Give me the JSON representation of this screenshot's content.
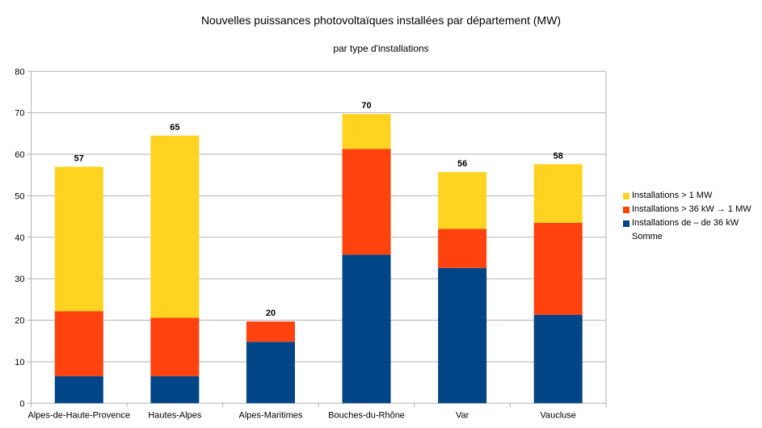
{
  "chart_data": {
    "type": "bar",
    "stacked": true,
    "title": "Nouvelles puissances photovoltaïques installées par département (MW)",
    "subtitle": "par type d'installations",
    "xlabel": "",
    "ylabel": "",
    "ylim": [
      0,
      80
    ],
    "yticks": [
      "0",
      "10",
      "20",
      "30",
      "40",
      "50",
      "60",
      "70",
      "80"
    ],
    "grid": true,
    "legend_position": "right",
    "categories": [
      "Alpes-de-Haute-Provence",
      "Hautes-Alpes",
      "Alpes-Maritimes",
      "Bouches-du-Rhône",
      "Var",
      "Vaucluse"
    ],
    "series": [
      {
        "name": "Installations de – de 36 kW",
        "color": "#004586",
        "values": [
          6.5,
          6.5,
          14.8,
          35.8,
          32.6,
          21.3
        ]
      },
      {
        "name": "Installations > 36 kW → 1 MW",
        "color": "#ff420e",
        "values": [
          15.7,
          14.1,
          4.9,
          25.5,
          9.4,
          22.2
        ]
      },
      {
        "name": "Installations > 1 MW",
        "color": "#ffd320",
        "values": [
          34.8,
          43.9,
          0,
          8.4,
          13.7,
          14.1
        ]
      }
    ],
    "totals_label": "Somme",
    "totals": [
      "57",
      "65",
      "20",
      "70",
      "56",
      "58"
    ],
    "legend_order": [
      "Installations > 1 MW",
      "Installations > 36 kW → 1 MW",
      "Installations de – de 36 kW",
      "Somme"
    ]
  }
}
